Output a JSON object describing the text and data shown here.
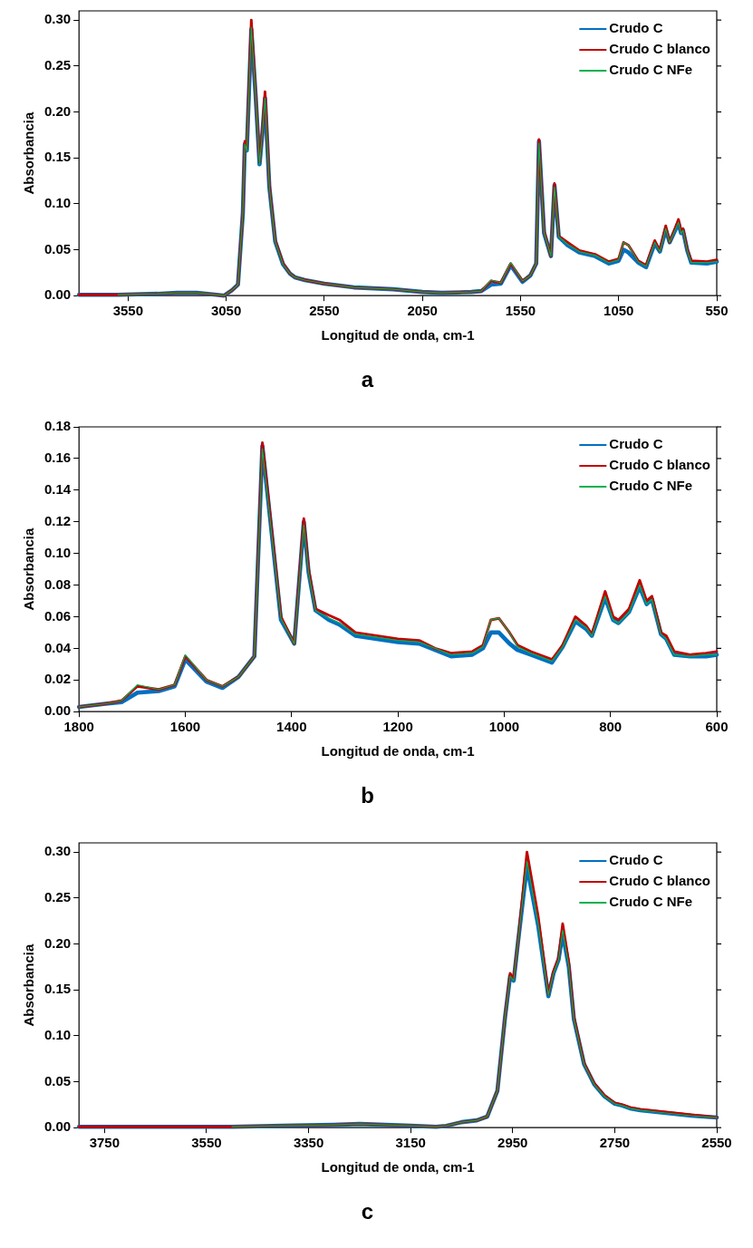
{
  "chart_data": [
    {
      "type": "line",
      "title": "a",
      "xlabel": "Longitud de onda, cm-1",
      "ylabel": "Absorbancia",
      "legend": "top right",
      "marker": "none",
      "xlim": [
        3800,
        550
      ],
      "xticks": [
        3550,
        3050,
        2550,
        2050,
        1550,
        1050,
        550
      ],
      "ylim": [
        0,
        0.31
      ],
      "yticks": [
        {
          "value": 0,
          "label": "0.00"
        },
        {
          "value": 0.05,
          "label": "0.05"
        },
        {
          "value": 0.1,
          "label": "0.10"
        },
        {
          "value": 0.15,
          "label": "0.15"
        },
        {
          "value": 0.2,
          "label": "0.20"
        },
        {
          "value": 0.25,
          "label": "0.25"
        },
        {
          "value": 0.3,
          "label": "0.30"
        }
      ],
      "x": [
        3800,
        3600,
        3400,
        3300,
        3200,
        3100,
        3060,
        3020,
        2990,
        2965,
        2955,
        2945,
        2922,
        2900,
        2880,
        2865,
        2852,
        2830,
        2800,
        2760,
        2725,
        2700,
        2650,
        2550,
        2400,
        2200,
        2050,
        1950,
        1800,
        1750,
        1700,
        1650,
        1600,
        1540,
        1500,
        1470,
        1456,
        1430,
        1395,
        1377,
        1355,
        1310,
        1250,
        1170,
        1100,
        1050,
        1025,
        1000,
        950,
        910,
        866,
        840,
        810,
        790,
        745,
        732,
        722,
        700,
        680,
        600,
        550
      ],
      "series": [
        {
          "name": "Crudo C",
          "color": "#0070c0",
          "values": [
            0.001,
            0.001,
            0.002,
            0.003,
            0.003,
            0.001,
            0,
            0.006,
            0.012,
            0.09,
            0.165,
            0.158,
            0.29,
            0.218,
            0.143,
            0.178,
            0.215,
            0.118,
            0.059,
            0.034,
            0.024,
            0.02,
            0.017,
            0.013,
            0.009,
            0.007,
            0.004,
            0.003,
            0.004,
            0.005,
            0.012,
            0.013,
            0.033,
            0.015,
            0.022,
            0.035,
            0.168,
            0.068,
            0.043,
            0.12,
            0.064,
            0.055,
            0.047,
            0.043,
            0.035,
            0.038,
            0.05,
            0.047,
            0.036,
            0.031,
            0.057,
            0.048,
            0.072,
            0.058,
            0.079,
            0.068,
            0.071,
            0.049,
            0.036,
            0.035,
            0.037
          ]
        },
        {
          "name": "Crudo C blanco",
          "color": "#c00000",
          "values": [
            0.001,
            0.001,
            0.002,
            0.003,
            0.003,
            0.001,
            0,
            0.006,
            0.012,
            0.09,
            0.168,
            0.16,
            0.3,
            0.22,
            0.145,
            0.18,
            0.222,
            0.12,
            0.06,
            0.035,
            0.024,
            0.02,
            0.017,
            0.013,
            0.009,
            0.007,
            0.004,
            0.003,
            0.004,
            0.005,
            0.016,
            0.014,
            0.035,
            0.016,
            0.022,
            0.035,
            0.17,
            0.07,
            0.043,
            0.122,
            0.065,
            0.058,
            0.049,
            0.045,
            0.037,
            0.04,
            0.058,
            0.055,
            0.038,
            0.033,
            0.06,
            0.049,
            0.076,
            0.058,
            0.083,
            0.07,
            0.073,
            0.05,
            0.038,
            0.037,
            0.039
          ]
        },
        {
          "name": "Crudo C NFe",
          "color": "#00b050",
          "values": [
            null,
            0.001,
            0.002,
            0.003,
            0.003,
            0.001,
            0,
            0.006,
            0.012,
            0.09,
            0.165,
            0.158,
            0.292,
            0.219,
            0.143,
            0.178,
            0.215,
            0.118,
            0.059,
            0.034,
            0.024,
            0.02,
            0.017,
            0.013,
            0.009,
            0.007,
            0.004,
            0.003,
            0.004,
            0.005,
            0.017,
            0.014,
            0.036,
            0.016,
            0.022,
            0.035,
            0.166,
            0.069,
            0.043,
            0.118,
            0.064,
            0.056,
            0.048,
            0.044,
            0.036,
            0.039,
            0.058,
            0.055,
            0.037,
            0.032,
            0.058,
            0.048,
            0.073,
            0.058,
            0.08,
            0.068,
            0.071,
            0.049,
            0.036,
            0.036,
            0.037
          ]
        }
      ]
    },
    {
      "type": "line",
      "title": "b",
      "xlabel": "Longitud de onda, cm-1",
      "ylabel": "Absorbancia",
      "legend": "top right",
      "marker": "none",
      "xlim": [
        1800,
        600
      ],
      "xticks": [
        1800,
        1600,
        1400,
        1200,
        1000,
        800,
        600
      ],
      "ylim": [
        0,
        0.18
      ],
      "yticks": [
        {
          "value": 0,
          "label": "0.00"
        },
        {
          "value": 0.02,
          "label": "0.02"
        },
        {
          "value": 0.04,
          "label": "0.04"
        },
        {
          "value": 0.06,
          "label": "0.06"
        },
        {
          "value": 0.08,
          "label": "0.08"
        },
        {
          "value": 0.1,
          "label": "0.10"
        },
        {
          "value": 0.12,
          "label": "0.12"
        },
        {
          "value": 0.14,
          "label": "0.14"
        },
        {
          "value": 0.16,
          "label": "0.16"
        },
        {
          "value": 0.18,
          "label": "0.18"
        }
      ],
      "x": [
        1800,
        1750,
        1720,
        1690,
        1650,
        1620,
        1600,
        1560,
        1530,
        1500,
        1470,
        1455,
        1420,
        1395,
        1377,
        1368,
        1355,
        1330,
        1310,
        1280,
        1200,
        1160,
        1130,
        1100,
        1060,
        1040,
        1025,
        1010,
        990,
        975,
        950,
        910,
        890,
        866,
        845,
        835,
        810,
        795,
        785,
        765,
        745,
        732,
        722,
        705,
        695,
        680,
        650,
        620,
        600
      ],
      "series": [
        {
          "name": "Crudo C",
          "color": "#0070c0",
          "values": [
            0.003,
            0.005,
            0.006,
            0.012,
            0.013,
            0.016,
            0.033,
            0.019,
            0.015,
            0.022,
            0.035,
            0.168,
            0.058,
            0.043,
            0.12,
            0.088,
            0.064,
            0.058,
            0.055,
            0.048,
            0.044,
            0.043,
            0.039,
            0.035,
            0.036,
            0.04,
            0.05,
            0.05,
            0.043,
            0.039,
            0.036,
            0.031,
            0.041,
            0.057,
            0.052,
            0.048,
            0.072,
            0.058,
            0.056,
            0.063,
            0.079,
            0.068,
            0.071,
            0.049,
            0.046,
            0.036,
            0.035,
            0.035,
            0.036
          ]
        },
        {
          "name": "Crudo C blanco",
          "color": "#c00000",
          "values": [
            0.003,
            0.005,
            0.007,
            0.016,
            0.014,
            0.017,
            0.035,
            0.02,
            0.016,
            0.022,
            0.035,
            0.17,
            0.06,
            0.043,
            0.122,
            0.09,
            0.065,
            0.061,
            0.058,
            0.05,
            0.046,
            0.045,
            0.04,
            0.037,
            0.038,
            0.042,
            0.058,
            0.059,
            0.05,
            0.042,
            0.038,
            0.033,
            0.042,
            0.06,
            0.054,
            0.049,
            0.076,
            0.06,
            0.058,
            0.065,
            0.083,
            0.07,
            0.073,
            0.05,
            0.048,
            0.038,
            0.036,
            0.037,
            0.038
          ]
        },
        {
          "name": "Crudo C NFe",
          "color": "#00b050",
          "values": [
            0.003,
            0.005,
            0.007,
            0.017,
            0.014,
            0.017,
            0.036,
            0.02,
            0.016,
            0.022,
            0.035,
            0.166,
            0.059,
            0.043,
            0.118,
            0.088,
            0.064,
            0.059,
            0.056,
            0.049,
            0.045,
            0.044,
            0.04,
            0.036,
            0.037,
            0.041,
            0.058,
            0.059,
            0.05,
            0.041,
            0.037,
            0.032,
            0.041,
            0.058,
            0.053,
            0.048,
            0.073,
            0.058,
            0.056,
            0.063,
            0.08,
            0.068,
            0.071,
            0.049,
            0.046,
            0.036,
            0.035,
            0.036,
            0.036
          ]
        }
      ]
    },
    {
      "type": "line",
      "title": "c",
      "xlabel": "Longitud de onda, cm-1",
      "ylabel": "Absorbancia",
      "legend": "top right",
      "marker": "none",
      "xlim": [
        3800,
        2550
      ],
      "xticks": [
        3750,
        3550,
        3350,
        3150,
        2950,
        2750,
        2550
      ],
      "ylim": [
        0,
        0.31
      ],
      "yticks": [
        {
          "value": 0,
          "label": "0.00"
        },
        {
          "value": 0.05,
          "label": "0.05"
        },
        {
          "value": 0.1,
          "label": "0.10"
        },
        {
          "value": 0.15,
          "label": "0.15"
        },
        {
          "value": 0.2,
          "label": "0.20"
        },
        {
          "value": 0.25,
          "label": "0.25"
        },
        {
          "value": 0.3,
          "label": "0.30"
        }
      ],
      "x": [
        3800,
        3700,
        3600,
        3500,
        3400,
        3300,
        3250,
        3200,
        3150,
        3100,
        3080,
        3050,
        3020,
        3000,
        2980,
        2965,
        2955,
        2948,
        2940,
        2922,
        2900,
        2880,
        2870,
        2860,
        2852,
        2840,
        2830,
        2810,
        2790,
        2770,
        2750,
        2735,
        2720,
        2700,
        2650,
        2600,
        2550
      ],
      "series": [
        {
          "name": "Crudo C",
          "color": "#0070c0",
          "values": [
            0.001,
            0.001,
            0.001,
            0.001,
            0.002,
            0.003,
            0.004,
            0.003,
            0.002,
            0.001,
            0.002,
            0.006,
            0.008,
            0.012,
            0.04,
            0.12,
            0.165,
            0.16,
            0.2,
            0.285,
            0.22,
            0.143,
            0.168,
            0.183,
            0.212,
            0.175,
            0.118,
            0.069,
            0.047,
            0.034,
            0.026,
            0.024,
            0.021,
            0.019,
            0.016,
            0.013,
            0.011
          ]
        },
        {
          "name": "Crudo C blanco",
          "color": "#c00000",
          "values": [
            0.001,
            0.001,
            0.001,
            0.001,
            0.002,
            0.003,
            0.004,
            0.003,
            0.002,
            0.001,
            0.002,
            0.006,
            0.008,
            0.012,
            0.04,
            0.12,
            0.168,
            0.162,
            0.2,
            0.3,
            0.23,
            0.145,
            0.17,
            0.185,
            0.222,
            0.18,
            0.12,
            0.07,
            0.048,
            0.035,
            0.027,
            0.025,
            0.022,
            0.02,
            0.017,
            0.014,
            0.011
          ]
        },
        {
          "name": "Crudo C NFe",
          "color": "#00b050",
          "values": [
            null,
            null,
            null,
            0.001,
            0.002,
            0.003,
            0.004,
            0.003,
            0.002,
            0.001,
            0.002,
            0.006,
            0.008,
            0.012,
            0.04,
            0.12,
            0.165,
            0.16,
            0.2,
            0.29,
            0.222,
            0.144,
            0.168,
            0.183,
            0.215,
            0.176,
            0.118,
            0.069,
            0.047,
            0.034,
            0.026,
            0.024,
            0.021,
            0.019,
            0.016,
            0.013,
            0.011
          ]
        }
      ]
    }
  ]
}
